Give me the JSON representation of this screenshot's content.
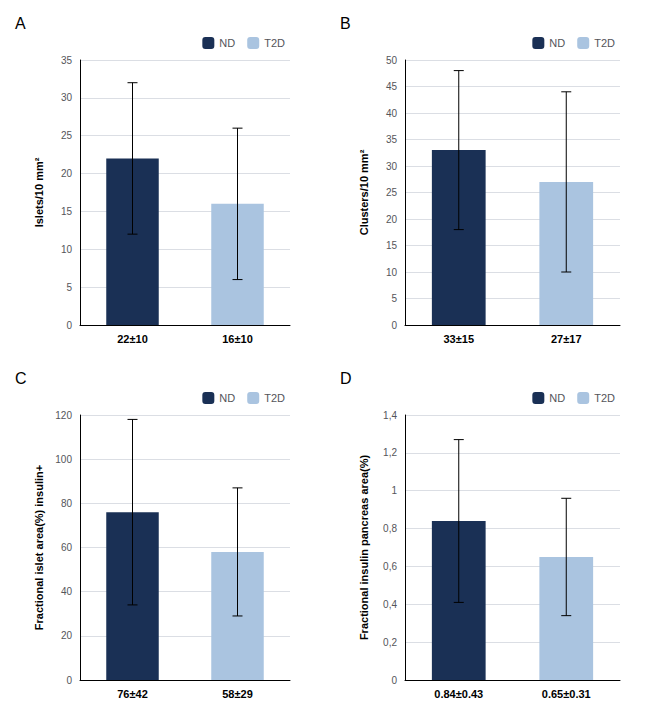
{
  "chart_data": [
    {
      "type": "bar",
      "title": "A",
      "ylabel": "Islets/10 mm²",
      "categories": [
        "22±10",
        "16±10"
      ],
      "series": [
        {
          "name": "ND",
          "color": "#1a3055",
          "values": [
            22,
            null
          ],
          "errors": [
            10,
            null
          ]
        },
        {
          "name": "T2D",
          "color": "#aac4e0",
          "values": [
            null,
            16
          ],
          "errors": [
            null,
            10
          ]
        }
      ],
      "ylim": [
        0,
        35
      ],
      "yticks": [
        0,
        5,
        10,
        15,
        20,
        25,
        30,
        35
      ],
      "grid": true,
      "legend": "upper right"
    },
    {
      "type": "bar",
      "title": "B",
      "ylabel": "Clusters/10 mm²",
      "categories": [
        "33±15",
        "27±17"
      ],
      "series": [
        {
          "name": "ND",
          "color": "#1a3055",
          "values": [
            33,
            null
          ],
          "errors": [
            15,
            null
          ]
        },
        {
          "name": "T2D",
          "color": "#aac4e0",
          "values": [
            null,
            27
          ],
          "errors": [
            null,
            17
          ]
        }
      ],
      "ylim": [
        0,
        50
      ],
      "yticks": [
        0,
        5,
        10,
        15,
        20,
        25,
        30,
        35,
        40,
        45,
        50
      ],
      "grid": true,
      "legend": "upper right"
    },
    {
      "type": "bar",
      "title": "C",
      "ylabel": "Fractional islet area(%) insulin+",
      "categories": [
        "76±42",
        "58±29"
      ],
      "series": [
        {
          "name": "ND",
          "color": "#1a3055",
          "values": [
            76,
            null
          ],
          "errors": [
            42,
            null
          ]
        },
        {
          "name": "T2D",
          "color": "#aac4e0",
          "values": [
            null,
            58
          ],
          "errors": [
            null,
            29
          ]
        }
      ],
      "ylim": [
        0,
        120
      ],
      "yticks": [
        0,
        20,
        40,
        60,
        80,
        100,
        120
      ],
      "grid": true,
      "legend": "upper right"
    },
    {
      "type": "bar",
      "title": "D",
      "ylabel": "Fractional insulin pancreas area(%)",
      "categories": [
        "0.84±0.43",
        "0.65±0.31"
      ],
      "series": [
        {
          "name": "ND",
          "color": "#1a3055",
          "values": [
            0.84,
            null
          ],
          "errors": [
            0.43,
            null
          ]
        },
        {
          "name": "T2D",
          "color": "#aac4e0",
          "values": [
            null,
            0.65
          ],
          "errors": [
            null,
            0.31
          ]
        }
      ],
      "ylim": [
        0,
        1.4
      ],
      "yticks": [
        0,
        {
          "value": 0.2,
          "label": "0,2"
        },
        {
          "value": 0.4,
          "label": "0,4"
        },
        {
          "value": 0.6,
          "label": "0,6"
        },
        {
          "value": 0.8,
          "label": "0,8"
        },
        1,
        {
          "value": 1.2,
          "label": "1,2"
        },
        {
          "value": 1.4,
          "label": "1,4"
        }
      ],
      "grid": true,
      "legend": "upper right"
    }
  ]
}
